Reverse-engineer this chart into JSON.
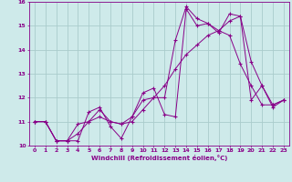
{
  "title": "",
  "xlabel": "Windchill (Refroidissement éolien,°C)",
  "ylabel": "",
  "bg_color": "#ceeaea",
  "line_color": "#880088",
  "grid_color": "#aacccc",
  "xlim": [
    -0.5,
    23.5
  ],
  "ylim": [
    10.0,
    16.0
  ],
  "xticks": [
    0,
    1,
    2,
    3,
    4,
    5,
    6,
    7,
    8,
    9,
    10,
    11,
    12,
    13,
    14,
    15,
    16,
    17,
    18,
    19,
    20,
    21,
    22,
    23
  ],
  "yticks": [
    10,
    11,
    12,
    13,
    14,
    15,
    16
  ],
  "line1_x": [
    0,
    1,
    2,
    3,
    4,
    5,
    6,
    7,
    8,
    9,
    10,
    11,
    12,
    13,
    14,
    15,
    16,
    17,
    18,
    19,
    20,
    21,
    22,
    23
  ],
  "line1_y": [
    11.0,
    11.0,
    10.2,
    10.2,
    10.2,
    11.4,
    11.6,
    10.8,
    10.3,
    11.2,
    11.9,
    12.0,
    12.0,
    14.4,
    15.8,
    15.3,
    15.1,
    14.8,
    14.6,
    13.4,
    12.5,
    11.7,
    11.7,
    11.9
  ],
  "line2_x": [
    0,
    1,
    2,
    3,
    4,
    5,
    6,
    7,
    8,
    9,
    10,
    11,
    12,
    13,
    14,
    15,
    16,
    17,
    18,
    19,
    20,
    21,
    22,
    23
  ],
  "line2_y": [
    11.0,
    11.0,
    10.2,
    10.2,
    10.9,
    11.0,
    11.5,
    11.0,
    10.9,
    11.2,
    12.2,
    12.4,
    11.3,
    11.2,
    15.7,
    15.0,
    15.1,
    14.7,
    15.5,
    15.4,
    11.9,
    12.5,
    11.6,
    11.9
  ],
  "line3_x": [
    0,
    1,
    2,
    3,
    4,
    5,
    6,
    7,
    8,
    9,
    10,
    11,
    12,
    13,
    14,
    15,
    16,
    17,
    18,
    19,
    20,
    21,
    22,
    23
  ],
  "line3_y": [
    11.0,
    11.0,
    10.2,
    10.2,
    10.5,
    11.0,
    11.2,
    11.0,
    10.9,
    11.0,
    11.5,
    12.0,
    12.5,
    13.2,
    13.8,
    14.2,
    14.6,
    14.8,
    15.2,
    15.4,
    13.5,
    12.5,
    11.7,
    11.9
  ]
}
